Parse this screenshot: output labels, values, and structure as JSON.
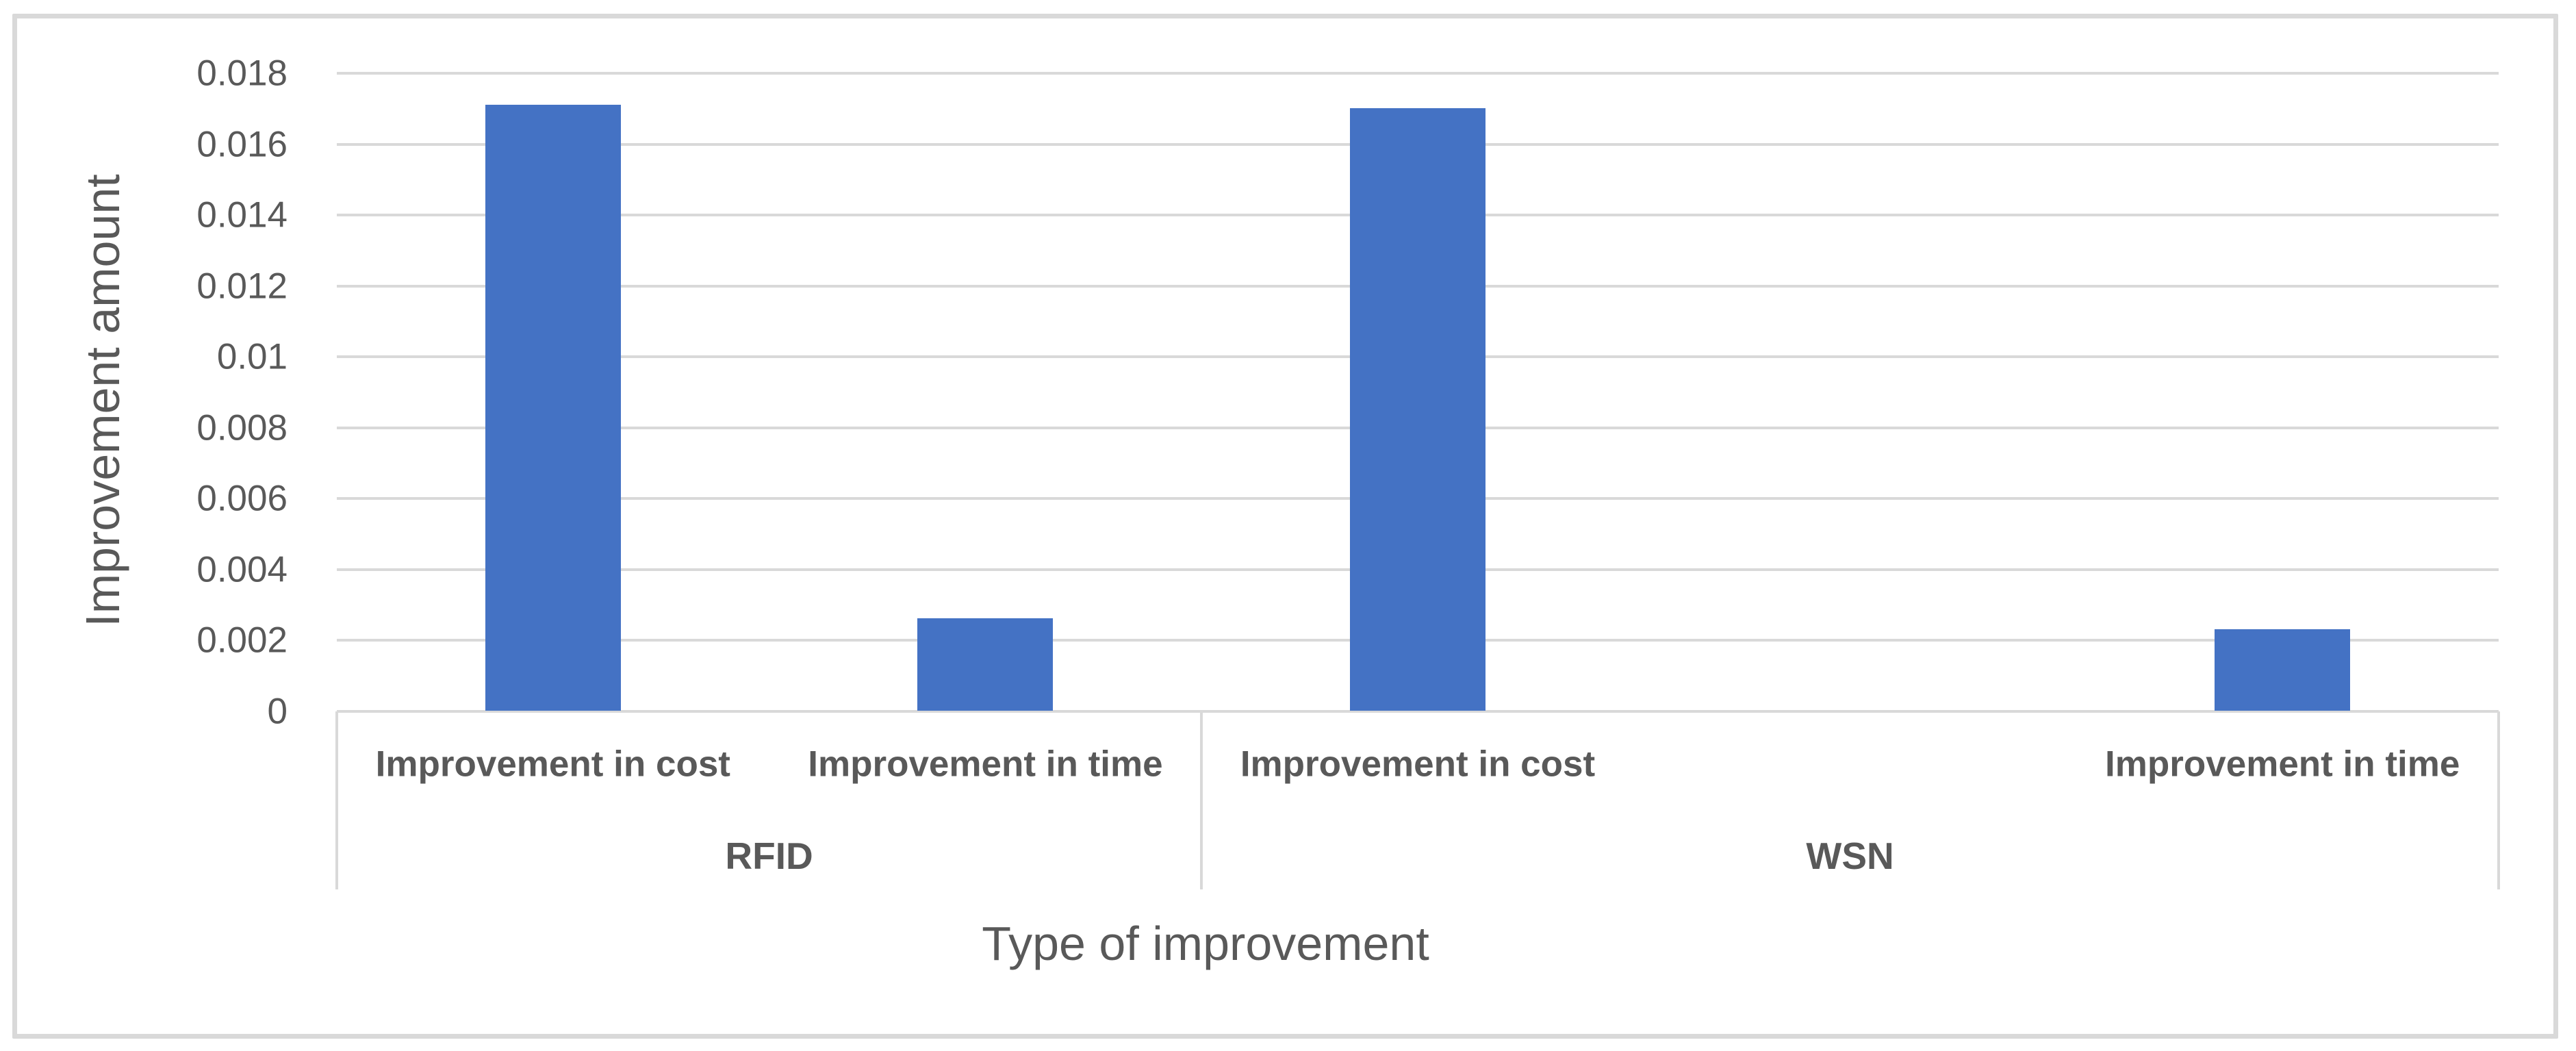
{
  "chart_data": {
    "type": "bar",
    "title": "",
    "xlabel": "Type of improvement",
    "ylabel": "Improvement amount",
    "ylim": [
      0,
      0.018
    ],
    "ytick_step": 0.002,
    "yticks": [
      "0",
      "0.002",
      "0.004",
      "0.006",
      "0.008",
      "0.01",
      "0.012",
      "0.014",
      "0.016",
      "0.018"
    ],
    "grid": true,
    "legend": false,
    "n_slots": 5,
    "bars": [
      {
        "group": "RFID",
        "category": "Improvement in cost",
        "value": 0.0171,
        "slot": 0
      },
      {
        "group": "RFID",
        "category": "Improvement in time",
        "value": 0.0026,
        "slot": 1
      },
      {
        "group": "WSN",
        "category": "Improvement in cost",
        "value": 0.017,
        "slot": 2
      },
      {
        "group": "WSN",
        "category": "Improvement in time",
        "value": 0.0023,
        "slot": 4
      }
    ],
    "group_spans": [
      {
        "label": "RFID",
        "from_slot": 0,
        "to_slot": 2
      },
      {
        "label": "WSN",
        "from_slot": 2,
        "to_slot": 5
      }
    ]
  },
  "colors": {
    "bar": "#4472C4",
    "gridline": "#D9D9D9",
    "axis_line": "#D9D9D9",
    "divider": "#D9D9D9",
    "border": "#D9D9D9",
    "text": "#595959",
    "background": "#FFFFFF"
  }
}
